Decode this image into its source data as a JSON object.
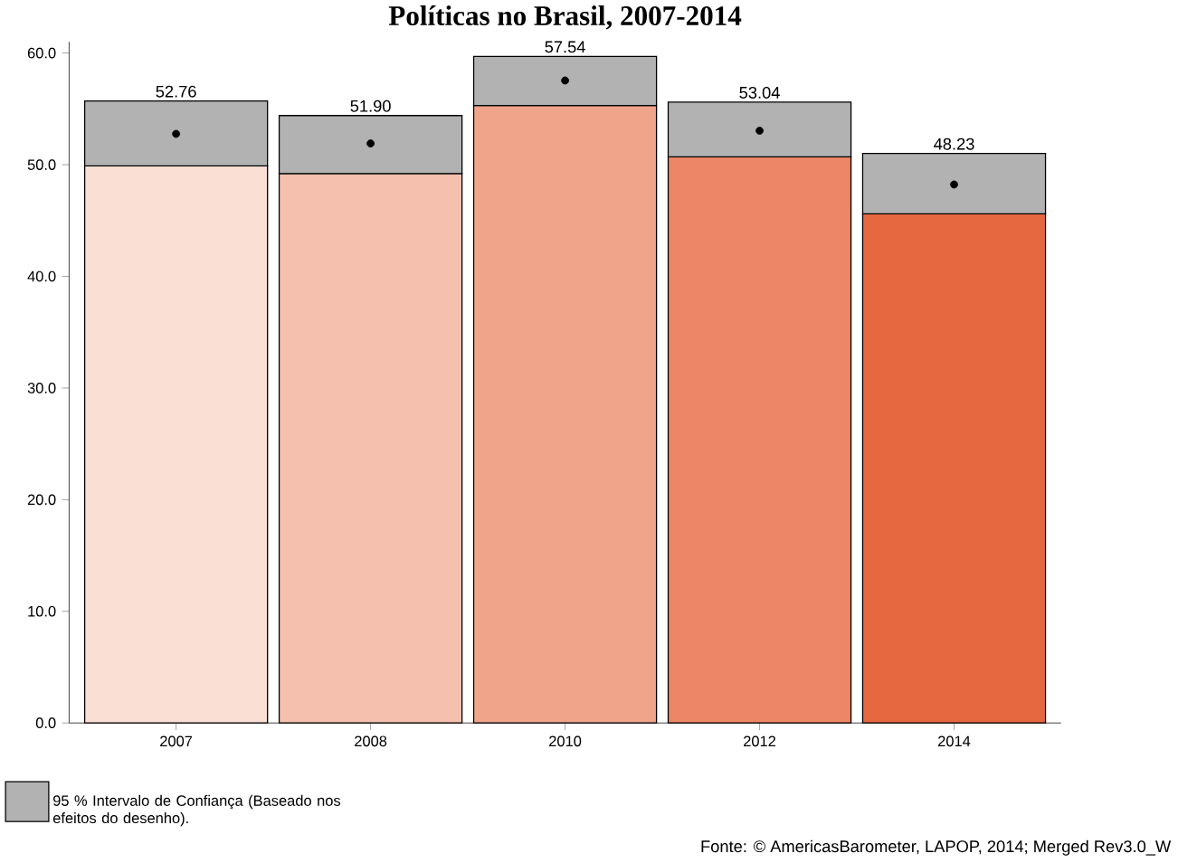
{
  "chart_data": {
    "type": "bar",
    "title": "Políticas no Brasil, 2007-2014",
    "stacked": true,
    "categories": [
      "2007",
      "2008",
      "2010",
      "2012",
      "2014"
    ],
    "series": [
      {
        "colors": [
          "#fadfd4",
          "#f5c1ae",
          "#f0a48a",
          "#ec8666",
          "#e66840"
        ],
        "values": [
          49.9,
          49.2,
          55.3,
          50.7,
          45.6
        ]
      },
      {
        "name": "95 % Intervalo de Confiança (Baseado nos efeitos do desenho).",
        "color": "#b2b2b2",
        "values": [
          5.8,
          5.2,
          4.4,
          4.9,
          5.4
        ]
      },
      {
        "type": "scatter",
        "color": "#000000",
        "values": [
          52.76,
          51.9,
          57.54,
          53.04,
          48.23
        ],
        "value_labels": [
          "52.76",
          "51.90",
          "57.54",
          "53.04",
          "48.23"
        ]
      }
    ],
    "ylim": [
      0,
      61
    ],
    "yticks": [
      {
        "value": 0,
        "label": "0.0"
      },
      {
        "value": 10,
        "label": "10.0"
      },
      {
        "value": 20,
        "label": "20.0"
      },
      {
        "value": 30,
        "label": "30.0"
      },
      {
        "value": 40,
        "label": "40.0"
      },
      {
        "value": 50,
        "label": "50.0"
      },
      {
        "value": 60,
        "label": "60.0"
      }
    ],
    "marker": "circle",
    "legend": "bottom left",
    "annotations": [
      "Fonte: © AmericasBarometer, LAPOP, 2014; Merged Rev3.0_W"
    ]
  }
}
